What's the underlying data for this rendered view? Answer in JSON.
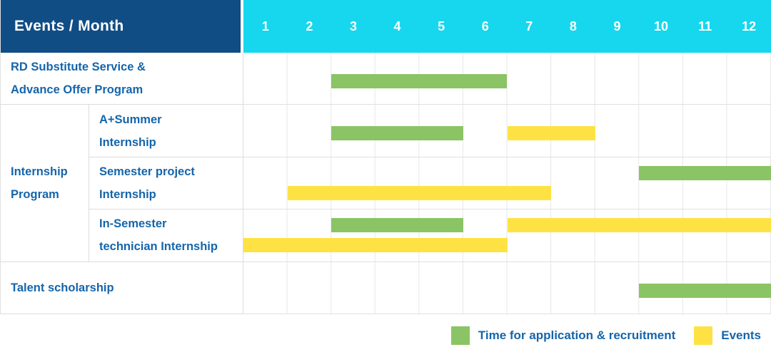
{
  "header": {
    "title": "Events / Month"
  },
  "colors": {
    "header_bg": "#114d85",
    "months_bg": "#16d7ee",
    "recruitment": "#8ac464",
    "event": "#fee243",
    "label_text": "#1565ab"
  },
  "chart_data": {
    "type": "gantt",
    "title": "Events / Month",
    "x_unit": "month",
    "months": [
      "1",
      "2",
      "3",
      "4",
      "5",
      "6",
      "7",
      "8",
      "9",
      "10",
      "11",
      "12"
    ],
    "rows": [
      {
        "group": null,
        "label_lines": [
          "RD Substitute Service &",
          "Advance Offer Program"
        ],
        "lines": [
          [
            {
              "kind": "recruitment",
              "start": 3,
              "end": 6
            }
          ]
        ]
      },
      {
        "group": "Internship Program",
        "label_lines": [
          "A+Summer",
          "Internship"
        ],
        "lines": [
          [
            {
              "kind": "recruitment",
              "start": 3,
              "end": 5
            },
            {
              "kind": "event",
              "start": 7,
              "end": 8
            }
          ]
        ]
      },
      {
        "group": "Internship Program",
        "label_lines": [
          "Semester project",
          "Internship"
        ],
        "lines": [
          [
            {
              "kind": "recruitment",
              "start": 10,
              "end": 12
            }
          ],
          [
            {
              "kind": "event",
              "start": 2,
              "end": 7
            }
          ]
        ]
      },
      {
        "group": "Internship Program",
        "label_lines": [
          "In-Semester",
          "technician Internship"
        ],
        "lines": [
          [
            {
              "kind": "recruitment",
              "start": 3,
              "end": 5
            },
            {
              "kind": "event",
              "start": 7,
              "end": 12
            }
          ],
          [
            {
              "kind": "event",
              "start": 1,
              "end": 6
            }
          ]
        ]
      },
      {
        "group": null,
        "label_lines": [
          "Talent scholarship"
        ],
        "lines": [
          [
            {
              "kind": "recruitment",
              "start": 10,
              "end": 12
            }
          ]
        ]
      }
    ],
    "legend": [
      {
        "kind": "recruitment",
        "label": "Time for application & recruitment"
      },
      {
        "kind": "event",
        "label": "Events"
      }
    ]
  }
}
